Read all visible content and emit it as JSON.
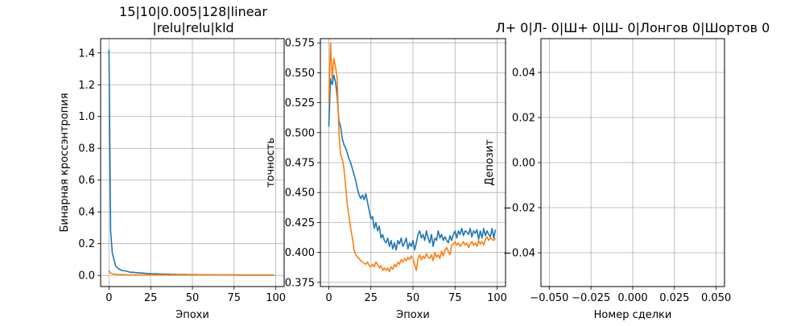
{
  "colors": {
    "series1": "#1f77b4",
    "series2": "#ff7f0e",
    "grid": "#b0b0b0",
    "axis": "#000000"
  },
  "chart_data": [
    {
      "type": "line",
      "title_line1": "15|10|0.005|128|linear",
      "title_line2": "|relu|relu|kld",
      "xlabel": "Эпохи",
      "ylabel": "Бинарная кроссэнтропия",
      "xlim": [
        -5,
        105
      ],
      "ylim": [
        -0.07,
        1.49
      ],
      "xticks": [
        0,
        25,
        50,
        75,
        100
      ],
      "yticks": [
        0.0,
        0.2,
        0.4,
        0.6,
        0.8,
        1.0,
        1.2,
        1.4
      ],
      "ytick_labels": [
        "0.0",
        "0.2",
        "0.4",
        "0.6",
        "0.8",
        "1.0",
        "1.2",
        "1.4"
      ],
      "grid": true,
      "series": [
        {
          "values": [
            1.42,
            0.28,
            0.14,
            0.1,
            0.06,
            0.05,
            0.04,
            0.035,
            0.03,
            0.03,
            0.028,
            0.025,
            0.022,
            0.02,
            0.02,
            0.019,
            0.018,
            0.017,
            0.016,
            0.015,
            0.015,
            0.014,
            0.013,
            0.012,
            0.012,
            0.011,
            0.011,
            0.01,
            0.01,
            0.01,
            0.009,
            0.009,
            0.009,
            0.008,
            0.008,
            0.008,
            0.008,
            0.007,
            0.007,
            0.007,
            0.007,
            0.006,
            0.006,
            0.006,
            0.006,
            0.006,
            0.006,
            0.005,
            0.005,
            0.005,
            0.005,
            0.005,
            0.005,
            0.005,
            0.004,
            0.004,
            0.004,
            0.004,
            0.004,
            0.004,
            0.004,
            0.004,
            0.004,
            0.003,
            0.003,
            0.003,
            0.003,
            0.003,
            0.003,
            0.003,
            0.003,
            0.003,
            0.003,
            0.003,
            0.003,
            0.003,
            0.002,
            0.002,
            0.002,
            0.002,
            0.002,
            0.002,
            0.002,
            0.002,
            0.002,
            0.002,
            0.002,
            0.002,
            0.002,
            0.002,
            0.002,
            0.002,
            0.002,
            0.002,
            0.002,
            0.002,
            0.002,
            0.002,
            0.002,
            0.002
          ]
        },
        {
          "values": [
            0.03,
            0.015,
            0.01,
            0.008,
            0.007,
            0.006,
            0.006,
            0.005,
            0.005,
            0.005,
            0.005,
            0.004,
            0.004,
            0.004,
            0.004,
            0.004,
            0.004,
            0.003,
            0.003,
            0.003,
            0.003,
            0.003,
            0.003,
            0.003,
            0.003,
            0.003,
            0.003,
            0.003,
            0.003,
            0.003,
            0.003,
            0.003,
            0.003,
            0.003,
            0.003,
            0.003,
            0.003,
            0.003,
            0.003,
            0.003,
            0.003,
            0.003,
            0.003,
            0.003,
            0.003,
            0.003,
            0.003,
            0.003,
            0.003,
            0.003,
            0.003,
            0.003,
            0.003,
            0.003,
            0.003,
            0.003,
            0.003,
            0.003,
            0.003,
            0.003,
            0.003,
            0.003,
            0.003,
            0.003,
            0.003,
            0.003,
            0.003,
            0.003,
            0.003,
            0.003,
            0.003,
            0.003,
            0.003,
            0.003,
            0.003,
            0.003,
            0.003,
            0.003,
            0.003,
            0.003,
            0.003,
            0.003,
            0.003,
            0.003,
            0.003,
            0.003,
            0.003,
            0.003,
            0.003,
            0.003,
            0.003,
            0.003,
            0.003,
            0.003,
            0.003,
            0.003,
            0.003,
            0.003,
            0.003,
            0.003
          ]
        }
      ]
    },
    {
      "type": "line",
      "title_line1": "",
      "title_line2": "",
      "xlabel": "Эпохи",
      "ylabel": "точность",
      "xlim": [
        -5,
        105
      ],
      "ylim": [
        0.3715,
        0.5785
      ],
      "xticks": [
        0,
        25,
        50,
        75,
        100
      ],
      "yticks": [
        0.375,
        0.4,
        0.425,
        0.45,
        0.475,
        0.5,
        0.525,
        0.55,
        0.575
      ],
      "ytick_labels": [
        "0.375",
        "0.400",
        "0.425",
        "0.450",
        "0.475",
        "0.500",
        "0.525",
        "0.550",
        "0.575"
      ],
      "grid": true,
      "series": [
        {
          "values": [
            0.505,
            0.545,
            0.54,
            0.548,
            0.542,
            0.53,
            0.51,
            0.505,
            0.495,
            0.49,
            0.487,
            0.483,
            0.478,
            0.475,
            0.47,
            0.465,
            0.46,
            0.453,
            0.448,
            0.445,
            0.448,
            0.444,
            0.449,
            0.442,
            0.435,
            0.428,
            0.43,
            0.42,
            0.425,
            0.418,
            0.422,
            0.412,
            0.415,
            0.41,
            0.408,
            0.412,
            0.405,
            0.41,
            0.403,
            0.408,
            0.402,
            0.41,
            0.407,
            0.412,
            0.405,
            0.408,
            0.412,
            0.403,
            0.408,
            0.405,
            0.41,
            0.402,
            0.408,
            0.415,
            0.418,
            0.412,
            0.415,
            0.41,
            0.418,
            0.412,
            0.408,
            0.415,
            0.405,
            0.412,
            0.41,
            0.418,
            0.412,
            0.415,
            0.41,
            0.413,
            0.41,
            0.408,
            0.414,
            0.41,
            0.415,
            0.418,
            0.412,
            0.418,
            0.415,
            0.42,
            0.414,
            0.418,
            0.417,
            0.415,
            0.42,
            0.413,
            0.418,
            0.416,
            0.419,
            0.411,
            0.418,
            0.412,
            0.42,
            0.414,
            0.418,
            0.415,
            0.413,
            0.42,
            0.412,
            0.419
          ]
        },
        {
          "values": [
            0.525,
            0.575,
            0.545,
            0.562,
            0.555,
            0.545,
            0.5,
            0.482,
            0.478,
            0.47,
            0.455,
            0.44,
            0.43,
            0.42,
            0.412,
            0.402,
            0.398,
            0.396,
            0.395,
            0.393,
            0.392,
            0.391,
            0.39,
            0.392,
            0.389,
            0.388,
            0.39,
            0.388,
            0.392,
            0.39,
            0.387,
            0.389,
            0.385,
            0.387,
            0.385,
            0.387,
            0.384,
            0.388,
            0.386,
            0.39,
            0.388,
            0.392,
            0.39,
            0.394,
            0.392,
            0.395,
            0.393,
            0.396,
            0.394,
            0.397,
            0.395,
            0.39,
            0.385,
            0.395,
            0.398,
            0.394,
            0.397,
            0.395,
            0.399,
            0.396,
            0.395,
            0.398,
            0.393,
            0.4,
            0.396,
            0.398,
            0.395,
            0.401,
            0.397,
            0.402,
            0.404,
            0.401,
            0.398,
            0.406,
            0.407,
            0.409,
            0.406,
            0.408,
            0.405,
            0.407,
            0.409,
            0.406,
            0.408,
            0.404,
            0.407,
            0.409,
            0.406,
            0.408,
            0.405,
            0.41,
            0.407,
            0.409,
            0.406,
            0.411,
            0.413,
            0.41,
            0.412,
            0.411,
            0.41,
            0.412
          ]
        }
      ]
    },
    {
      "type": "line",
      "title_line1": "Л+ 0|Л- 0|Ш+ 0|Ш- 0|Лонгов 0|Шортов 0",
      "title_line2": "",
      "xlabel": "Номер сделки",
      "ylabel": "Депозит",
      "xlim": [
        -0.055,
        0.055
      ],
      "ylim": [
        -0.055,
        0.055
      ],
      "xticks": [
        -0.05,
        -0.025,
        0.0,
        0.025,
        0.05
      ],
      "xtick_labels": [
        "−0.050",
        "−0.025",
        "0.000",
        "0.025",
        "0.050"
      ],
      "yticks": [
        -0.04,
        -0.02,
        0.0,
        0.02,
        0.04
      ],
      "ytick_labels": [
        "−0.04",
        "−0.02",
        "0.00",
        "0.02",
        "0.04"
      ],
      "grid": true,
      "series": []
    }
  ]
}
